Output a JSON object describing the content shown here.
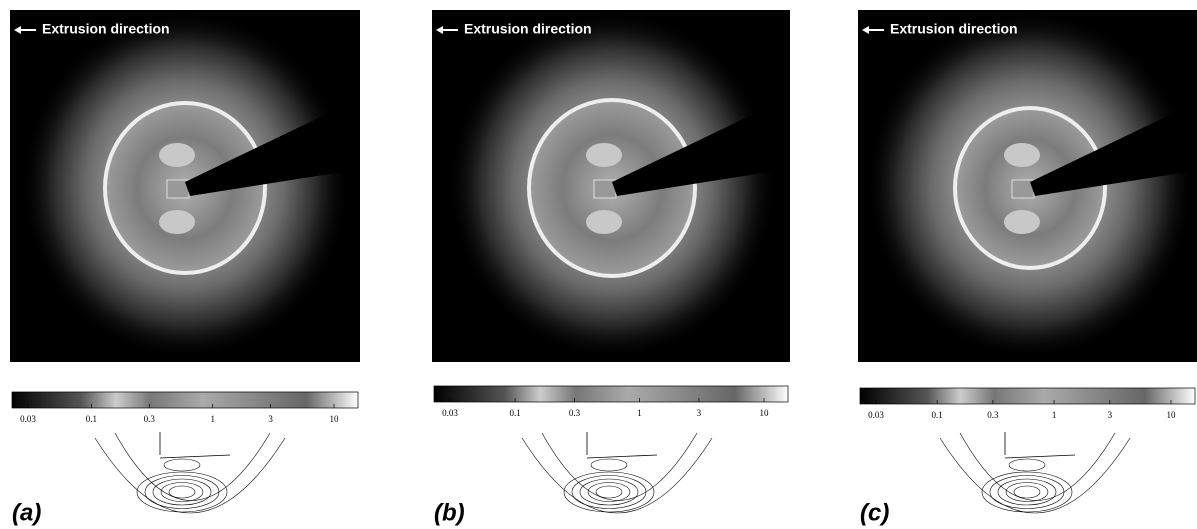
{
  "panels": [
    {
      "label": "(a)",
      "annotation": "Extrusion direction",
      "colorbar": {
        "scale": "log",
        "ticks": [
          0.03,
          0.1,
          0.3,
          1,
          3,
          10
        ]
      }
    },
    {
      "label": "(b)",
      "annotation": "Extrusion direction",
      "colorbar": {
        "scale": "log",
        "ticks": [
          0.03,
          0.1,
          0.3,
          1,
          3,
          10
        ]
      }
    },
    {
      "label": "(c)",
      "annotation": "Extrusion direction",
      "colorbar": {
        "scale": "log",
        "ticks": [
          0.03,
          0.1,
          0.3,
          1,
          3,
          10
        ]
      }
    }
  ]
}
